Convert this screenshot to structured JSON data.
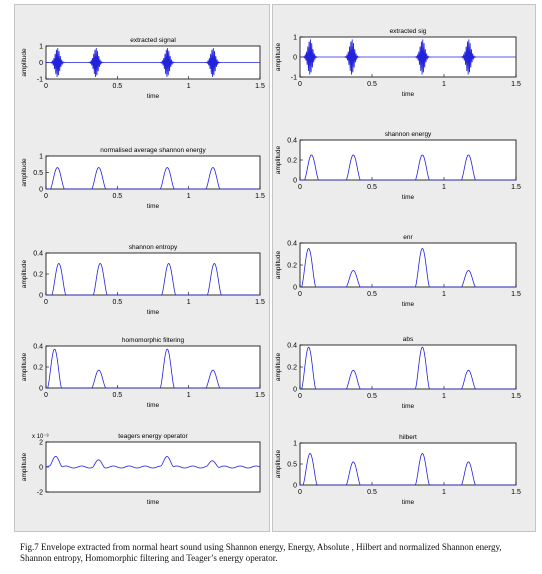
{
  "caption": "Fig.7 Envelope extracted from normal heart sound using Shannon energy, Energy, Absolute , Hilbert and normalized Shannon energy, Shannon entropy, Homomorphic filtering and Teager’s energy operator.",
  "colors": {
    "signal": "#2222dd",
    "axes": "#000000",
    "panel": "#ececec",
    "plot_bg": "#ffffff"
  },
  "chart_data": [
    {
      "type": "line",
      "title": "extracted signal",
      "xlabel": "time",
      "ylabel": "amplitude",
      "xlim": [
        0,
        1.5
      ],
      "ylim": [
        -1,
        1
      ],
      "yticks": [
        "1",
        "0",
        "-1"
      ],
      "xticks": [
        "0",
        "0.5",
        "1",
        "1.5"
      ],
      "beats": [
        0.08,
        0.35,
        0.85,
        1.17
      ],
      "beat_amplitude": 0.9,
      "baseline": 0
    },
    {
      "type": "line",
      "title": "normalised average shannon energy",
      "xlabel": "time",
      "ylabel": "amplitude",
      "xlim": [
        0,
        1.5
      ],
      "ylim": [
        0,
        1
      ],
      "yticks": [
        "1",
        "0.5",
        "0"
      ],
      "xticks": [
        "0",
        "0.5",
        "1",
        "1.5"
      ],
      "peaks": [
        {
          "t": 0.08,
          "value": 0.65
        },
        {
          "t": 0.37,
          "value": 0.65
        },
        {
          "t": 0.85,
          "value": 0.65
        },
        {
          "t": 1.17,
          "value": 0.65
        }
      ]
    },
    {
      "type": "line",
      "title": "shannon entropy",
      "xlabel": "time",
      "ylabel": "amplitude",
      "xlim": [
        0,
        1.5
      ],
      "ylim": [
        0,
        0.4
      ],
      "yticks": [
        "0.4",
        "0.2",
        "0"
      ],
      "xticks": [
        "0",
        "0.5",
        "1",
        "1.5"
      ],
      "peaks": [
        {
          "t": 0.09,
          "value": 0.3
        },
        {
          "t": 0.38,
          "value": 0.3
        },
        {
          "t": 0.86,
          "value": 0.3
        },
        {
          "t": 1.18,
          "value": 0.3
        }
      ]
    },
    {
      "type": "line",
      "title": "homomorphic filtering",
      "xlabel": "time",
      "ylabel": "amplitude",
      "xlim": [
        0,
        1.5
      ],
      "ylim": [
        0,
        0.4
      ],
      "yticks": [
        "0.4",
        "0.2",
        "0"
      ],
      "xticks": [
        "0",
        "0.5",
        "1",
        "1.5"
      ],
      "peaks": [
        {
          "t": 0.06,
          "value": 0.37
        },
        {
          "t": 0.37,
          "value": 0.17
        },
        {
          "t": 0.85,
          "value": 0.37
        },
        {
          "t": 1.17,
          "value": 0.17
        }
      ]
    },
    {
      "type": "line",
      "title": "teagers energy operator",
      "xlabel": "time",
      "ylabel": "amplitude",
      "xlim": [
        0,
        1.5
      ],
      "ylim": [
        -2,
        2
      ],
      "yticks": [
        "2",
        "0",
        "-2"
      ],
      "xticks": [],
      "scale_label": "x 10⁻³",
      "peaks": [
        {
          "t": 0.07,
          "value": 0.9
        },
        {
          "t": 0.37,
          "value": 0.5
        },
        {
          "t": 0.85,
          "value": 0.9
        },
        {
          "t": 1.17,
          "value": 0.5
        }
      ]
    },
    {
      "type": "line",
      "title": "extracted sig",
      "xlabel": "time",
      "ylabel": "amplitude",
      "xlim": [
        0,
        1.5
      ],
      "ylim": [
        -1,
        1
      ],
      "yticks": [
        "1",
        "0",
        "-1"
      ],
      "xticks": [
        "0",
        "0.5",
        "1",
        "1.5"
      ],
      "beats": [
        0.07,
        0.36,
        0.85,
        1.17
      ],
      "beat_amplitude": 0.9,
      "baseline": 0
    },
    {
      "type": "line",
      "title": "shannon energy",
      "xlabel": "time",
      "ylabel": "amplitude",
      "xlim": [
        0,
        1.5
      ],
      "ylim": [
        0,
        0.4
      ],
      "yticks": [
        "0.4",
        "0.2",
        "0"
      ],
      "xticks": [
        "0",
        "0.5",
        "1",
        "1.5"
      ],
      "peaks": [
        {
          "t": 0.08,
          "value": 0.25
        },
        {
          "t": 0.37,
          "value": 0.25
        },
        {
          "t": 0.85,
          "value": 0.25
        },
        {
          "t": 1.17,
          "value": 0.25
        }
      ]
    },
    {
      "type": "line",
      "title": "enr",
      "xlabel": "time",
      "ylabel": "amplitude",
      "xlim": [
        0,
        1.5
      ],
      "ylim": [
        0,
        0.4
      ],
      "yticks": [
        "0.4",
        "0.2",
        "0"
      ],
      "xticks": [
        "0",
        "0.5",
        "1",
        "1.5"
      ],
      "peaks": [
        {
          "t": 0.06,
          "value": 0.35
        },
        {
          "t": 0.37,
          "value": 0.15
        },
        {
          "t": 0.85,
          "value": 0.35
        },
        {
          "t": 1.17,
          "value": 0.15
        }
      ]
    },
    {
      "type": "line",
      "title": "abs",
      "xlabel": "time",
      "ylabel": "amplitude",
      "xlim": [
        0,
        1.5
      ],
      "ylim": [
        0,
        0.4
      ],
      "yticks": [
        "0.4",
        "0.2",
        "0"
      ],
      "xticks": [
        "0",
        "0.5",
        "1",
        "1.5"
      ],
      "peaks": [
        {
          "t": 0.06,
          "value": 0.38
        },
        {
          "t": 0.37,
          "value": 0.17
        },
        {
          "t": 0.85,
          "value": 0.38
        },
        {
          "t": 1.17,
          "value": 0.17
        }
      ]
    },
    {
      "type": "line",
      "title": "hilbert",
      "xlabel": "time",
      "ylabel": "amplitude",
      "xlim": [
        0,
        1.5
      ],
      "ylim": [
        0,
        1
      ],
      "yticks": [
        "1",
        "0.5",
        "0"
      ],
      "xticks": [
        "0",
        "0.5",
        "1",
        "1.5"
      ],
      "peaks": [
        {
          "t": 0.07,
          "value": 0.75
        },
        {
          "t": 0.37,
          "value": 0.55
        },
        {
          "t": 0.85,
          "value": 0.75
        },
        {
          "t": 1.17,
          "value": 0.55
        }
      ]
    }
  ]
}
